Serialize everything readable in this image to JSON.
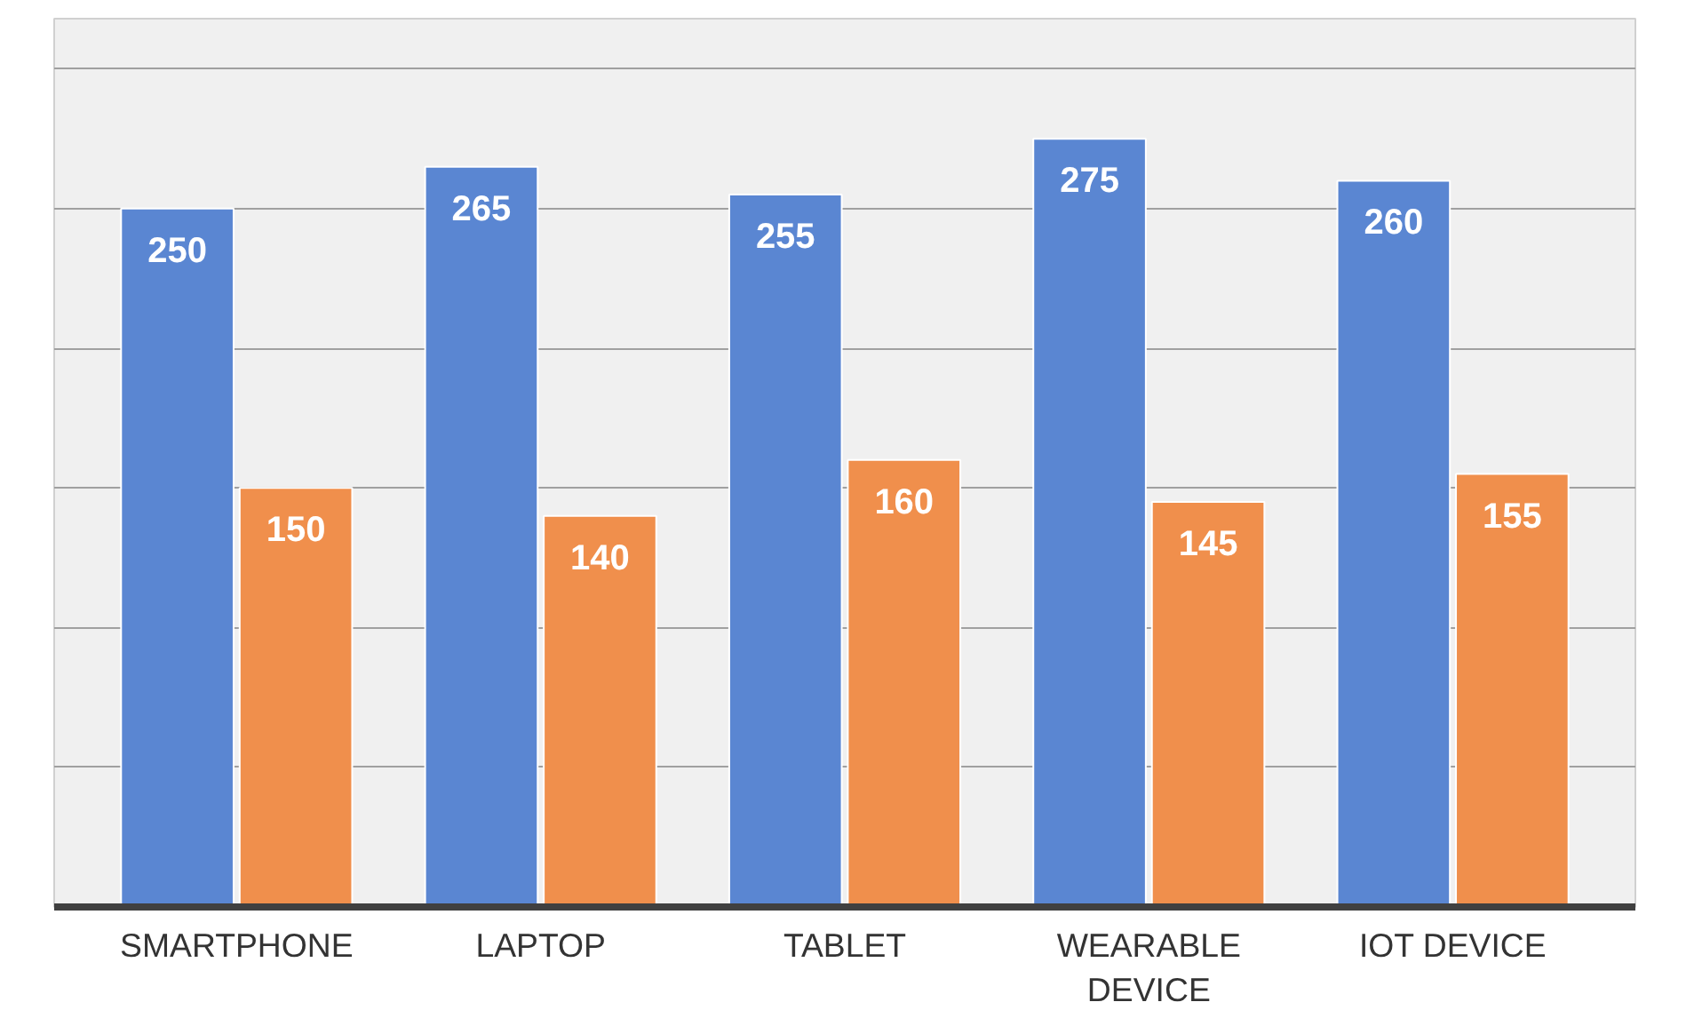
{
  "chart_data": {
    "type": "bar",
    "categories": [
      "SMARTPHONE",
      "LAPTOP",
      "TABLET",
      "WEARABLE DEVICE",
      "IOT DEVICE"
    ],
    "series": [
      {
        "color": "#5a86d2",
        "values": [
          250,
          265,
          255,
          275,
          260
        ]
      },
      {
        "color": "#f08f4c",
        "values": [
          150,
          140,
          160,
          145,
          155
        ]
      }
    ],
    "ylim": [
      0,
      318
    ],
    "yticks": [
      {
        "value": 0,
        "label": null
      },
      {
        "value": 50,
        "label": null
      },
      {
        "value": 100,
        "label": null
      },
      {
        "value": 150,
        "label": null
      },
      {
        "value": 200,
        "label": null
      },
      {
        "value": 250,
        "label": null
      },
      {
        "value": 300,
        "label": null
      }
    ],
    "grid": "y",
    "data_labels": true,
    "tick_labels": "x"
  }
}
